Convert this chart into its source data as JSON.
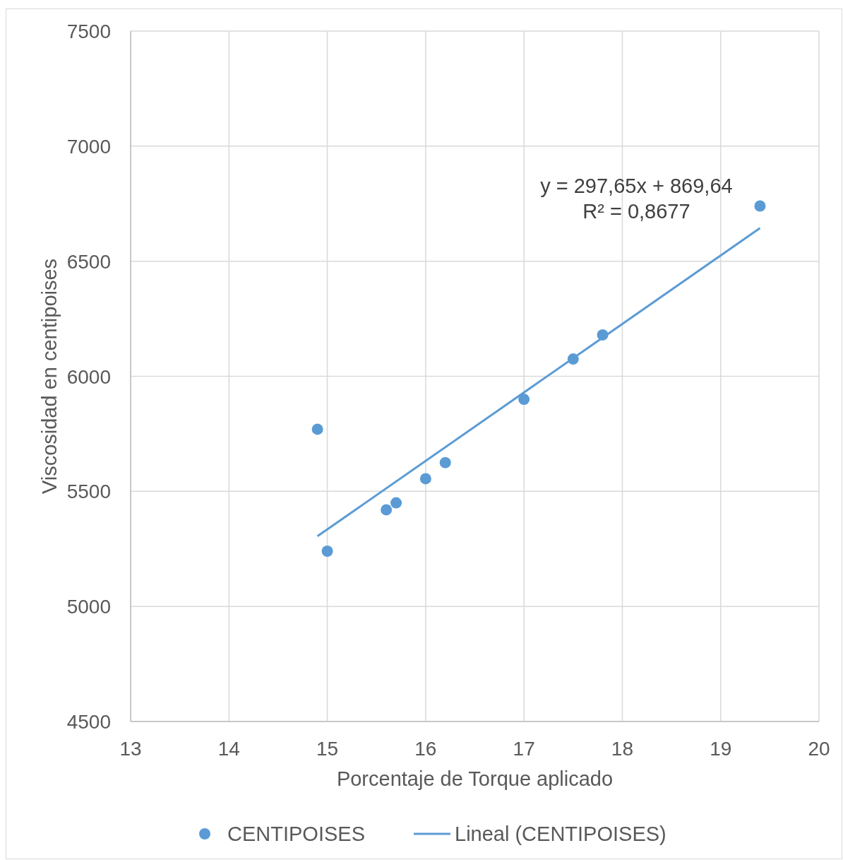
{
  "chart_data": {
    "type": "scatter",
    "xlabel": "Porcentaje de Torque aplicado",
    "ylabel": "Viscosidad en centipoises",
    "xlim": [
      13,
      20
    ],
    "xticks": [
      13,
      14,
      15,
      16,
      17,
      18,
      19,
      20
    ],
    "ylim": [
      4500,
      7500
    ],
    "yticks": [
      4500,
      5000,
      5500,
      6000,
      6500,
      7000,
      7500
    ],
    "grid": true,
    "legend": "bottom",
    "annotations": [
      "y = 297,65x + 869,64",
      "R² = 0,8677"
    ],
    "series": [
      {
        "name": "CENTIPOISES",
        "color": "#5b9bd5",
        "marker": "circle",
        "x": [
          14.9,
          15.0,
          15.6,
          15.7,
          16.0,
          16.2,
          17.0,
          17.5,
          17.8,
          19.4
        ],
        "values": [
          5770,
          5240,
          5420,
          5450,
          5555,
          5625,
          5900,
          6075,
          6180,
          6740
        ]
      },
      {
        "name": "Lineal (CENTIPOISES)",
        "color": "#5b9bd5",
        "type": "line",
        "line_style": "solid",
        "x": [
          14.9,
          19.4
        ],
        "values": [
          5305,
          6644
        ]
      }
    ]
  }
}
